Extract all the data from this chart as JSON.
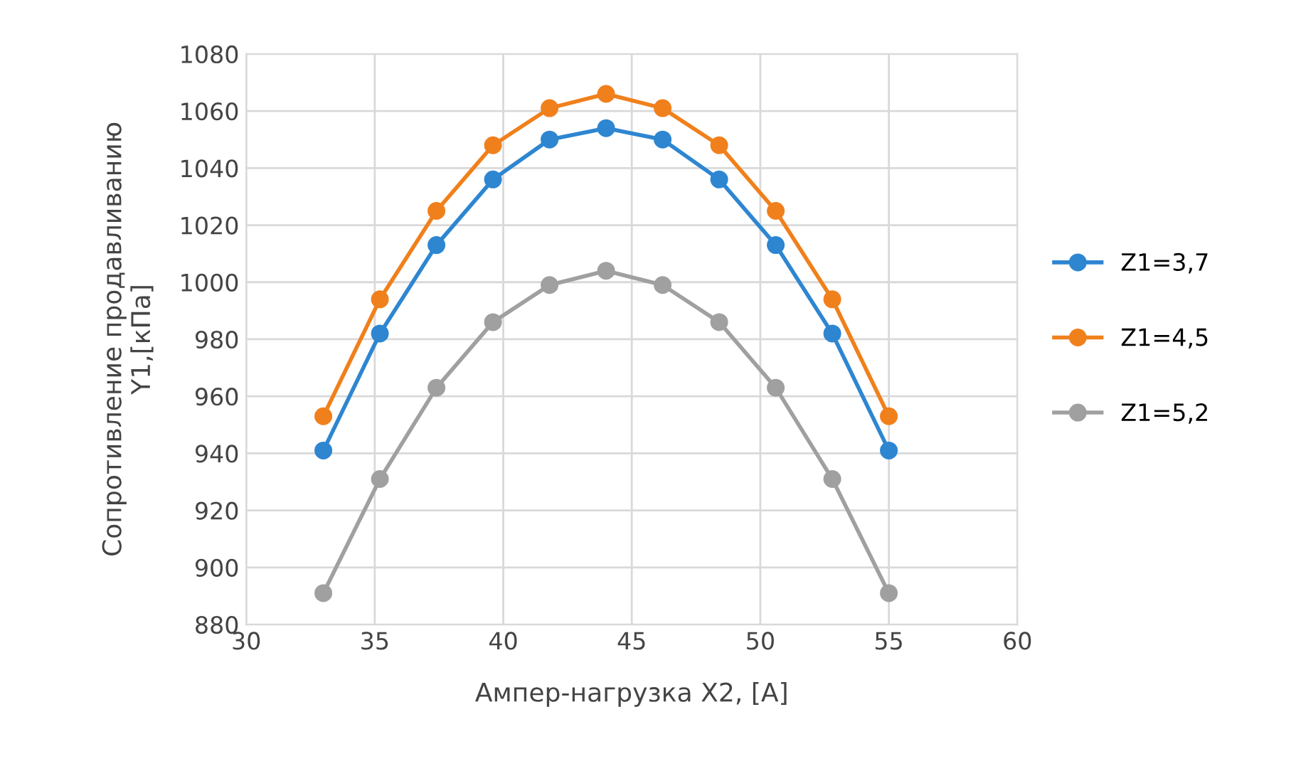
{
  "chart_data": {
    "type": "line",
    "xlabel": "Ампер-нагрузка X2, [А]",
    "ylabel": "Сопротивление продавливанию\nY1,[кПа]",
    "x": [
      33,
      35.2,
      37.4,
      39.6,
      41.8,
      44,
      46.2,
      48.4,
      50.6,
      52.8,
      55
    ],
    "series": [
      {
        "name": "Z1=3,7",
        "color": "#2e86d1",
        "values": [
          941,
          982,
          1013,
          1036,
          1050,
          1054,
          1050,
          1036,
          1013,
          982,
          941
        ]
      },
      {
        "name": "Z1=4,5",
        "color": "#f0801c",
        "values": [
          953,
          994,
          1025,
          1048,
          1061,
          1066,
          1061,
          1048,
          1025,
          994,
          953
        ]
      },
      {
        "name": "Z1=5,2",
        "color": "#a0a0a0",
        "values": [
          891,
          931,
          963,
          986,
          999,
          1004,
          999,
          986,
          963,
          931,
          891
        ]
      }
    ],
    "xlim": [
      30,
      60
    ],
    "xticks": [
      30,
      35,
      40,
      45,
      50,
      55,
      60
    ],
    "ylim": [
      880,
      1080
    ],
    "yticks": [
      880,
      900,
      920,
      940,
      960,
      980,
      1000,
      1020,
      1040,
      1060,
      1080
    ],
    "grid": true,
    "legend": "right",
    "marker": "circle",
    "line_style": "solid"
  }
}
